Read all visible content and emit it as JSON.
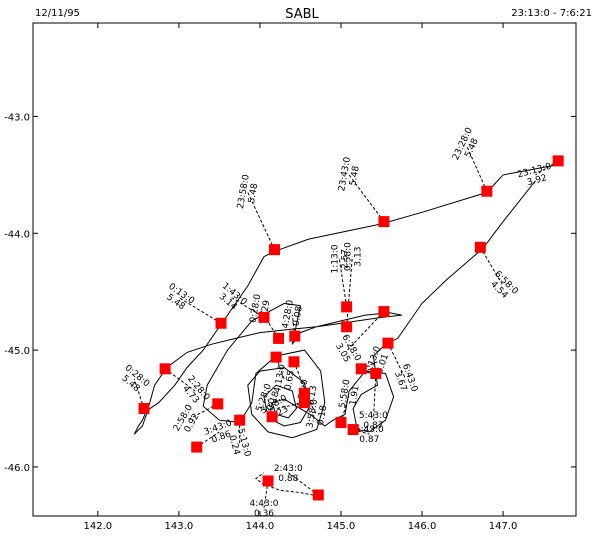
{
  "header": {
    "date": "12/11/95",
    "title": "SABL",
    "time_range": "23:13:0 - 7:6:21"
  },
  "chart_data": {
    "type": "scatter",
    "title": "SABL",
    "xlabel": "",
    "ylabel": "",
    "xlim": [
      141.2,
      147.9
    ],
    "ylim": [
      -46.42,
      -42.2
    ],
    "xticks": [
      "142.0",
      "143.0",
      "144.0",
      "145.0",
      "146.0",
      "147.0"
    ],
    "xtick_values": [
      142.0,
      143.0,
      144.0,
      145.0,
      146.0,
      147.0
    ],
    "yticks": [
      "-43.0",
      "-44.0",
      "-45.0",
      "-46.0"
    ],
    "ytick_values": [
      -43.0,
      -44.0,
      -45.0,
      -46.0
    ],
    "grid": false,
    "marker_color": "#ff0000",
    "flight_track": [
      [
        147.62,
        -43.42
      ],
      [
        147.0,
        -43.5
      ],
      [
        146.8,
        -43.65
      ],
      [
        146.0,
        -43.82
      ],
      [
        145.5,
        -43.92
      ],
      [
        144.6,
        -44.05
      ],
      [
        144.2,
        -44.15
      ],
      [
        144.05,
        -44.2
      ],
      [
        143.85,
        -44.45
      ],
      [
        143.6,
        -44.7
      ],
      [
        143.3,
        -45.0
      ],
      [
        143.1,
        -45.15
      ],
      [
        142.95,
        -45.3
      ],
      [
        142.75,
        -45.45
      ],
      [
        142.6,
        -45.52
      ],
      [
        142.55,
        -45.6
      ],
      [
        142.5,
        -45.65
      ],
      [
        142.45,
        -45.72
      ],
      [
        142.55,
        -45.65
      ],
      [
        142.6,
        -45.55
      ],
      [
        142.7,
        -45.3
      ],
      [
        142.85,
        -45.15
      ],
      [
        143.1,
        -45.02
      ],
      [
        143.4,
        -44.95
      ],
      [
        143.7,
        -44.9
      ],
      [
        144.0,
        -44.85
      ],
      [
        144.4,
        -44.82
      ],
      [
        144.7,
        -44.8
      ],
      [
        145.0,
        -44.75
      ],
      [
        145.3,
        -44.7
      ],
      [
        145.6,
        -44.68
      ],
      [
        145.75,
        -44.7
      ],
      [
        145.5,
        -44.72
      ],
      [
        145.1,
        -44.76
      ],
      [
        144.7,
        -44.8
      ],
      [
        144.5,
        -44.85
      ],
      [
        144.4,
        -44.95
      ],
      [
        144.5,
        -44.62
      ],
      [
        144.3,
        -44.6
      ],
      [
        143.9,
        -44.75
      ],
      [
        143.6,
        -45.0
      ],
      [
        143.35,
        -45.3
      ],
      [
        143.3,
        -45.48
      ],
      [
        143.5,
        -45.6
      ],
      [
        143.75,
        -45.62
      ],
      [
        143.9,
        -45.45
      ],
      [
        143.95,
        -45.2
      ],
      [
        144.2,
        -45.05
      ],
      [
        144.55,
        -45.0
      ],
      [
        144.75,
        -45.18
      ],
      [
        144.8,
        -45.45
      ],
      [
        144.7,
        -45.68
      ],
      [
        144.4,
        -45.75
      ],
      [
        144.1,
        -45.7
      ],
      [
        143.9,
        -45.55
      ],
      [
        143.85,
        -45.3
      ],
      [
        144.0,
        -45.18
      ],
      [
        144.3,
        -45.15
      ],
      [
        144.55,
        -45.28
      ],
      [
        144.6,
        -45.5
      ],
      [
        144.5,
        -45.62
      ],
      [
        144.3,
        -45.65
      ],
      [
        144.1,
        -45.58
      ],
      [
        144.05,
        -45.4
      ],
      [
        144.2,
        -45.3
      ],
      [
        144.4,
        -45.35
      ],
      [
        144.45,
        -45.5
      ],
      [
        144.35,
        -45.58
      ],
      [
        144.2,
        -45.55
      ],
      [
        144.15,
        -45.45
      ],
      [
        144.3,
        -45.42
      ],
      [
        144.62,
        -45.55
      ],
      [
        144.8,
        -45.65
      ],
      [
        144.9,
        -45.6
      ],
      [
        145.05,
        -45.55
      ],
      [
        145.1,
        -45.35
      ],
      [
        145.3,
        -45.18
      ],
      [
        145.55,
        -45.2
      ],
      [
        145.65,
        -45.4
      ],
      [
        145.55,
        -45.6
      ],
      [
        145.35,
        -45.7
      ],
      [
        145.2,
        -45.68
      ],
      [
        145.15,
        -45.5
      ],
      [
        145.25,
        -45.38
      ],
      [
        145.45,
        -45.3
      ],
      [
        145.4,
        -45.05
      ],
      [
        145.55,
        -44.95
      ],
      [
        145.7,
        -44.9
      ],
      [
        146.0,
        -44.6
      ],
      [
        146.3,
        -44.4
      ],
      [
        146.75,
        -44.13
      ],
      [
        147.0,
        -43.9
      ],
      [
        147.4,
        -43.55
      ]
    ],
    "return_leg": [
      [
        144.72,
        -46.25
      ],
      [
        144.5,
        -46.22
      ],
      [
        144.25,
        -46.2
      ],
      [
        144.05,
        -46.15
      ],
      [
        143.95,
        -46.1
      ],
      [
        144.05,
        -46.05
      ]
    ],
    "stations": [
      {
        "x": 147.68,
        "y": -43.38,
        "time": "23:13:0",
        "value": "3.92",
        "tx": 147.4,
        "ty": -43.5,
        "rot": -15
      },
      {
        "x": 146.8,
        "y": -43.64,
        "time": "23:28:0",
        "value": "5.48",
        "tx": 146.55,
        "ty": -43.25,
        "rot": -65
      },
      {
        "x": 145.53,
        "y": -43.9,
        "time": "23:43:0",
        "value": "5.48",
        "tx": 145.1,
        "ty": -43.5,
        "rot": -80
      },
      {
        "x": 144.18,
        "y": -44.14,
        "time": "23:58:0",
        "value": "5.48",
        "tx": 143.85,
        "ty": -43.65,
        "rot": -80
      },
      {
        "x": 146.72,
        "y": -44.12,
        "time": "6:58:0",
        "value": "4.54",
        "tx": 147.0,
        "ty": -44.45,
        "rot": 45
      },
      {
        "x": 145.07,
        "y": -44.63,
        "time": "1:13:0",
        "value": "2.57",
        "tx": 144.98,
        "ty": -44.22,
        "rot": -90
      },
      {
        "x": 145.07,
        "y": -44.8,
        "time": "0:58:0",
        "value": "3.13",
        "tx": 145.14,
        "ty": -44.2,
        "rot": -90
      },
      {
        "x": 145.53,
        "y": -44.67,
        "time": "6:28:0",
        "value": "3.05",
        "tx": 145.08,
        "ty": -45.0,
        "rot": 60
      },
      {
        "x": 145.58,
        "y": -44.94,
        "time": "6:43:0",
        "value": "3.67",
        "tx": 145.8,
        "ty": -45.25,
        "rot": 70
      },
      {
        "x": 143.52,
        "y": -44.77,
        "time": "0:13:0",
        "value": "5.48",
        "tx": 143.0,
        "ty": -44.55,
        "rot": 35
      },
      {
        "x": 144.05,
        "y": -44.72,
        "time": "1:43:0",
        "value": "3.14",
        "tx": 143.65,
        "ty": -44.55,
        "rot": 40
      },
      {
        "x": 144.23,
        "y": -44.9,
        "time": "0:28:0",
        "value": "0.29",
        "tx": 144.0,
        "ty": -44.65,
        "rot": -80
      },
      {
        "x": 144.43,
        "y": -44.88,
        "time": "4:28:0",
        "value": "0.08",
        "tx": 144.4,
        "ty": -44.7,
        "rot": -80
      },
      {
        "x": 142.57,
        "y": -45.5,
        "time": "0:28:0",
        "value": "5.48",
        "tx": 142.45,
        "ty": -45.25,
        "rot": 40
      },
      {
        "x": 142.83,
        "y": -45.16,
        "time": "2:28:0",
        "value": "4.73",
        "tx": 143.2,
        "ty": -45.35,
        "rot": 50
      },
      {
        "x": 143.48,
        "y": -45.46,
        "time": "2:58:0",
        "value": "0.92",
        "tx": 143.1,
        "ty": -45.6,
        "rot": -60
      },
      {
        "x": 143.22,
        "y": -45.83,
        "time": "3:43:0",
        "value": "0.86",
        "tx": 143.5,
        "ty": -45.7,
        "rot": -20
      },
      {
        "x": 143.75,
        "y": -45.6,
        "time": "5:13:0",
        "value": "0.24",
        "tx": 143.75,
        "ty": -45.8,
        "rot": 75
      },
      {
        "x": 144.2,
        "y": -45.06,
        "time": "4:13:0",
        "value": "0.65",
        "tx": 144.3,
        "ty": -45.25,
        "rot": -80
      },
      {
        "x": 144.42,
        "y": -45.1,
        "time": "4:58:0",
        "value": "0.13",
        "tx": 144.58,
        "ty": -45.38,
        "rot": -80
      },
      {
        "x": 144.55,
        "y": -45.37,
        "time": "3:58:0",
        "value": "0.18",
        "tx": 144.7,
        "ty": -45.55,
        "rot": -80
      },
      {
        "x": 144.55,
        "y": -45.45,
        "time": "3:28:0",
        "value": "0.23",
        "tx": 144.2,
        "ty": -45.5,
        "rot": -30
      },
      {
        "x": 144.15,
        "y": -45.57,
        "time": "5:28:0",
        "value": "0.18",
        "tx": 144.1,
        "ty": -45.42,
        "rot": -70
      },
      {
        "x": 145.0,
        "y": -45.62,
        "time": "5:58:0",
        "value": "1.91",
        "tx": 145.1,
        "ty": -45.38,
        "rot": -80
      },
      {
        "x": 145.25,
        "y": -45.16,
        "time": "6:13:0",
        "value": "3.01",
        "tx": 145.45,
        "ty": -45.1,
        "rot": -70
      },
      {
        "x": 145.43,
        "y": -45.2,
        "time": "5:43:0",
        "value": "0.87",
        "tx": 145.4,
        "ty": -45.6,
        "rot": 0
      },
      {
        "x": 145.15,
        "y": -45.68,
        "time": "5:43:0",
        "value": "0.87",
        "tx": 145.35,
        "ty": -45.72,
        "rot": 0
      },
      {
        "x": 144.1,
        "y": -46.12,
        "time": "4:43:0",
        "value": "0.36",
        "tx": 144.05,
        "ty": -46.35,
        "rot": 0
      },
      {
        "x": 144.72,
        "y": -46.24,
        "time": "2:43:0",
        "value": "0.88",
        "tx": 144.35,
        "ty": -46.05,
        "rot": 0
      }
    ]
  }
}
